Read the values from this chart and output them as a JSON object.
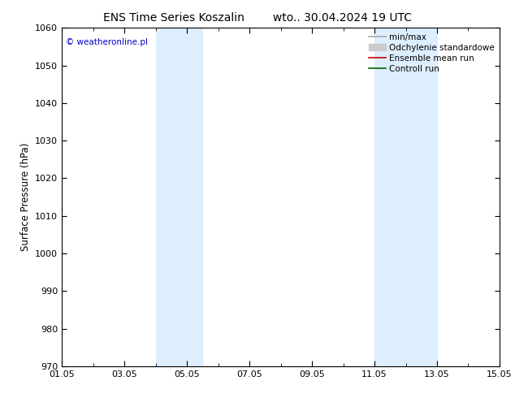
{
  "title_left": "ENS Time Series Koszalin",
  "title_right": "wto.. 30.04.2024 19 UTC",
  "ylabel": "Surface Pressure (hPa)",
  "ylim": [
    970,
    1060
  ],
  "yticks": [
    970,
    980,
    990,
    1000,
    1010,
    1020,
    1030,
    1040,
    1050,
    1060
  ],
  "xlim_num": [
    0,
    14
  ],
  "xtick_labels": [
    "01.05",
    "03.05",
    "05.05",
    "07.05",
    "09.05",
    "11.05",
    "13.05",
    "15.05"
  ],
  "xtick_positions": [
    0,
    2,
    4,
    6,
    8,
    10,
    12,
    14
  ],
  "shaded_regions": [
    {
      "xmin": 3.0,
      "xmax": 4.5,
      "color": "#ddeeff"
    },
    {
      "xmin": 10.0,
      "xmax": 12.0,
      "color": "#ddeeff"
    }
  ],
  "watermark_text": "© weatheronline.pl",
  "watermark_color": "#0000cc",
  "legend_items": [
    {
      "label": "min/max",
      "color": "#aaaaaa",
      "lw": 1.2,
      "type": "line"
    },
    {
      "label": "Odchylenie standardowe",
      "color": "#cccccc",
      "lw": 8,
      "type": "patch"
    },
    {
      "label": "Ensemble mean run",
      "color": "#cc0000",
      "lw": 1.2,
      "type": "line"
    },
    {
      "label": "Controll run",
      "color": "#006600",
      "lw": 1.2,
      "type": "line"
    }
  ],
  "bg_color": "#ffffff",
  "plot_bg_color": "#ffffff",
  "title_fontsize": 10,
  "tick_fontsize": 8,
  "ylabel_fontsize": 8.5,
  "legend_fontsize": 7.5
}
